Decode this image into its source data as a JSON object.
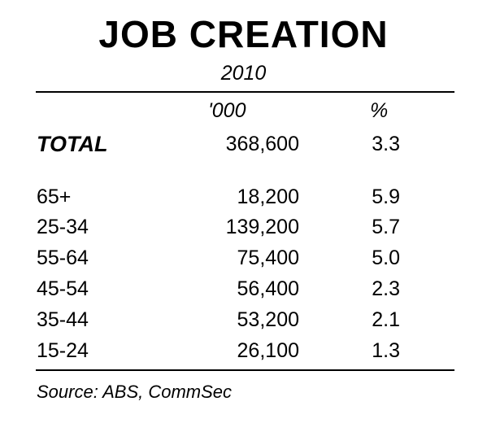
{
  "chart_data": {
    "type": "table",
    "title": "JOB CREATION",
    "subtitle": "2010",
    "columns": [
      "",
      "'000",
      "%"
    ],
    "total": {
      "label": "TOTAL",
      "thousands": "368,600",
      "percent": "3.3"
    },
    "rows": [
      {
        "label": "65+",
        "thousands": "18,200",
        "percent": "5.9"
      },
      {
        "label": "25-34",
        "thousands": "139,200",
        "percent": "5.7"
      },
      {
        "label": "55-64",
        "thousands": "75,400",
        "percent": "5.0"
      },
      {
        "label": "45-54",
        "thousands": "56,400",
        "percent": "2.3"
      },
      {
        "label": "35-44",
        "thousands": "53,200",
        "percent": "2.1"
      },
      {
        "label": "15-24",
        "thousands": "26,100",
        "percent": "1.3"
      }
    ],
    "source": "Source: ABS, CommSec"
  }
}
